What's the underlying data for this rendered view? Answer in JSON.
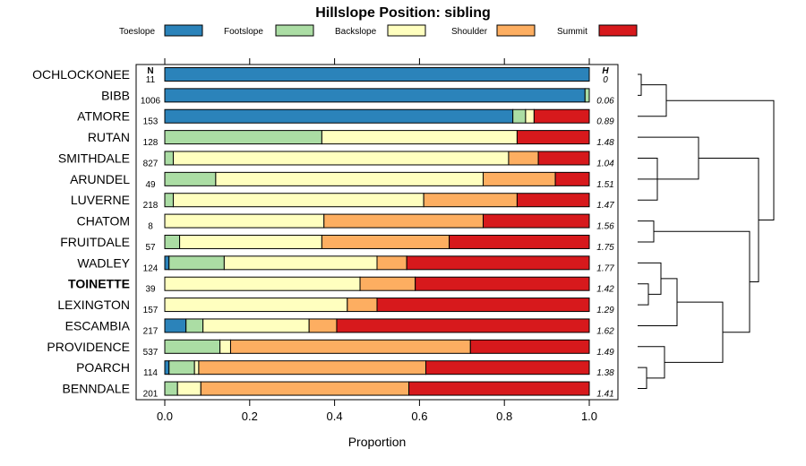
{
  "chart_data": {
    "type": "bar",
    "orientation": "horizontal",
    "stacked": true,
    "title": "Hillslope Position: sibling",
    "xlabel": "Proportion",
    "xlim": [
      0,
      1
    ],
    "xticks": [
      "0.0",
      "0.2",
      "0.4",
      "0.6",
      "0.8",
      "1.0"
    ],
    "n_header": "N",
    "h_header": "H",
    "series_names": [
      "Toeslope",
      "Footslope",
      "Backslope",
      "Shoulder",
      "Summit"
    ],
    "colors": [
      "#2b83ba",
      "#abdda4",
      "#ffffbf",
      "#fdae61",
      "#d7191c"
    ],
    "rows": [
      {
        "name": "OCHLOCKONEE",
        "n": "11",
        "h": "0",
        "values": [
          1.0,
          0.0,
          0.0,
          0.0,
          0.0
        ]
      },
      {
        "name": "BIBB",
        "n": "1006",
        "h": "0.06",
        "values": [
          0.99,
          0.01,
          0.0,
          0.0,
          0.0
        ]
      },
      {
        "name": "ATMORE",
        "n": "153",
        "h": "0.89",
        "values": [
          0.82,
          0.03,
          0.02,
          0.0,
          0.13
        ]
      },
      {
        "name": "RUTAN",
        "n": "128",
        "h": "1.48",
        "values": [
          0.0,
          0.37,
          0.46,
          0.0,
          0.17
        ]
      },
      {
        "name": "SMITHDALE",
        "n": "827",
        "h": "1.04",
        "values": [
          0.0,
          0.02,
          0.79,
          0.07,
          0.12
        ]
      },
      {
        "name": "ARUNDEL",
        "n": "49",
        "h": "1.51",
        "values": [
          0.0,
          0.12,
          0.63,
          0.17,
          0.08
        ]
      },
      {
        "name": "LUVERNE",
        "n": "218",
        "h": "1.47",
        "values": [
          0.0,
          0.02,
          0.59,
          0.22,
          0.17
        ]
      },
      {
        "name": "CHATOM",
        "n": "8",
        "h": "1.56",
        "values": [
          0.0,
          0.0,
          0.375,
          0.375,
          0.25
        ]
      },
      {
        "name": "FRUITDALE",
        "n": "57",
        "h": "1.75",
        "values": [
          0.0,
          0.035,
          0.335,
          0.3,
          0.33
        ]
      },
      {
        "name": "WADLEY",
        "n": "124",
        "h": "1.77",
        "values": [
          0.01,
          0.13,
          0.36,
          0.07,
          0.43
        ]
      },
      {
        "name": "TOINETTE",
        "n": "39",
        "h": "1.42",
        "values": [
          0.0,
          0.0,
          0.46,
          0.13,
          0.41
        ],
        "bold": true
      },
      {
        "name": "LEXINGTON",
        "n": "157",
        "h": "1.29",
        "values": [
          0.0,
          0.0,
          0.43,
          0.07,
          0.5
        ]
      },
      {
        "name": "ESCAMBIA",
        "n": "217",
        "h": "1.62",
        "values": [
          0.05,
          0.04,
          0.25,
          0.065,
          0.595
        ]
      },
      {
        "name": "PROVIDENCE",
        "n": "537",
        "h": "1.49",
        "values": [
          0.0,
          0.13,
          0.025,
          0.565,
          0.28
        ]
      },
      {
        "name": "POARCH",
        "n": "114",
        "h": "1.38",
        "values": [
          0.01,
          0.06,
          0.01,
          0.535,
          0.385
        ]
      },
      {
        "name": "BENNDALE",
        "n": "201",
        "h": "1.41",
        "values": [
          0.0,
          0.03,
          0.055,
          0.49,
          0.425
        ]
      }
    ]
  }
}
